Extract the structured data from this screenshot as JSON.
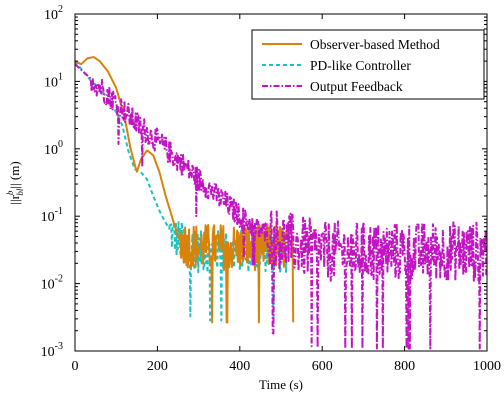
{
  "chart_data": {
    "type": "line",
    "xlabel": "Time (s)",
    "ylabel_main": "||r",
    "ylabel_super": "b",
    "ylabel_sub": "bl",
    "ylabel_tail": "|| (m)",
    "xlim": [
      0,
      1000
    ],
    "ylim": [
      0.001,
      100
    ],
    "yscale": "log",
    "grid": false,
    "legend_position": "top-right",
    "x_ticks": [
      0,
      200,
      400,
      600,
      800,
      1000
    ],
    "x_tick_labels": [
      "0",
      "200",
      "400",
      "600",
      "800",
      "1000"
    ],
    "y_ticks": [
      0.001,
      0.01,
      0.1,
      1,
      10,
      100
    ],
    "y_tick_labels": [
      {
        "base": "10",
        "exp": "-3"
      },
      {
        "base": "10",
        "exp": "-2"
      },
      {
        "base": "10",
        "exp": "-1"
      },
      {
        "base": "10",
        "exp": "0"
      },
      {
        "base": "10",
        "exp": "1"
      },
      {
        "base": "10",
        "exp": "2"
      }
    ],
    "series": [
      {
        "name": "Observer-based Method",
        "color": "#D9820A",
        "style": "solid",
        "points": [
          [
            0,
            20
          ],
          [
            15,
            18
          ],
          [
            30,
            22
          ],
          [
            45,
            23
          ],
          [
            60,
            20
          ],
          [
            80,
            14
          ],
          [
            100,
            8
          ],
          [
            120,
            3
          ],
          [
            135,
            1.0
          ],
          [
            150,
            0.45
          ],
          [
            160,
            0.7
          ],
          [
            175,
            0.95
          ],
          [
            190,
            0.8
          ],
          [
            205,
            0.45
          ],
          [
            220,
            0.2
          ],
          [
            235,
            0.1
          ],
          [
            250,
            0.05
          ],
          [
            260,
            0.04
          ],
          [
            300,
            0.035
          ],
          [
            350,
            0.035
          ],
          [
            400,
            0.035
          ],
          [
            450,
            0.035
          ],
          [
            500,
            0.035
          ],
          [
            530,
            0.035
          ]
        ],
        "noise_from_x": 255,
        "noise_amp": 0.35
      },
      {
        "name": "PD-like Controller",
        "color": "#19C3C3",
        "style": "dashed",
        "points": [
          [
            0,
            20
          ],
          [
            20,
            14
          ],
          [
            40,
            10
          ],
          [
            60,
            8
          ],
          [
            80,
            5.5
          ],
          [
            100,
            3.5
          ],
          [
            115,
            2.2
          ],
          [
            130,
            0.9
          ],
          [
            145,
            0.5
          ],
          [
            160,
            0.45
          ],
          [
            175,
            0.35
          ],
          [
            190,
            0.2
          ],
          [
            205,
            0.12
          ],
          [
            220,
            0.08
          ],
          [
            240,
            0.05
          ],
          [
            260,
            0.04
          ],
          [
            300,
            0.03
          ],
          [
            350,
            0.03
          ],
          [
            400,
            0.03
          ],
          [
            450,
            0.03
          ],
          [
            500,
            0.03
          ],
          [
            515,
            0.03
          ]
        ],
        "noise_from_x": 230,
        "noise_amp": 0.32
      },
      {
        "name": "Output Feedback",
        "color": "#C214C2",
        "style": "dashdot",
        "points": [
          [
            0,
            18
          ],
          [
            50,
            9.5
          ],
          [
            100,
            4.8
          ],
          [
            150,
            2.4
          ],
          [
            200,
            1.3
          ],
          [
            250,
            0.68
          ],
          [
            300,
            0.35
          ],
          [
            350,
            0.19
          ],
          [
            400,
            0.1
          ],
          [
            450,
            0.06
          ],
          [
            500,
            0.045
          ],
          [
            550,
            0.035
          ],
          [
            600,
            0.03
          ],
          [
            650,
            0.03
          ],
          [
            700,
            0.03
          ],
          [
            750,
            0.03
          ],
          [
            800,
            0.03
          ],
          [
            850,
            0.03
          ],
          [
            900,
            0.03
          ],
          [
            950,
            0.03
          ],
          [
            1000,
            0.03
          ]
        ],
        "noise_from_x": 40,
        "noise_amp": 0.18,
        "late_noise_from_x": 470,
        "late_noise_amp": 0.45
      }
    ]
  }
}
